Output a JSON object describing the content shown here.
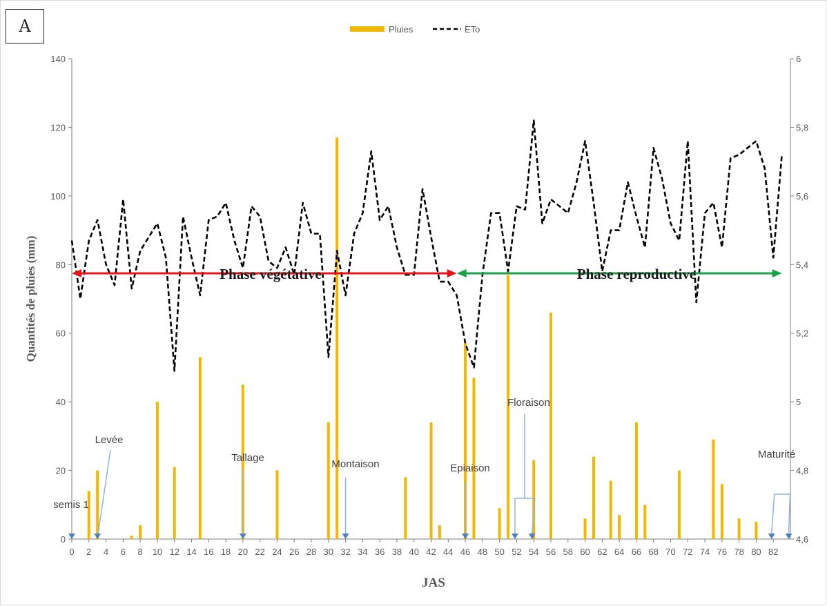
{
  "panel_label": "A",
  "chart_data": {
    "type": "bar",
    "xlabel": "JAS",
    "ylabel": "Quantités de pluies (mm)",
    "x_ticks": [
      0,
      2,
      4,
      6,
      8,
      10,
      12,
      14,
      16,
      18,
      20,
      22,
      24,
      26,
      28,
      30,
      32,
      34,
      36,
      38,
      40,
      42,
      44,
      46,
      48,
      50,
      52,
      54,
      56,
      58,
      60,
      62,
      64,
      66,
      68,
      70,
      72,
      74,
      76,
      78,
      80,
      82
    ],
    "xlim": [
      0,
      84
    ],
    "ylim": [
      0,
      140
    ],
    "y_ticks": [
      0,
      20,
      40,
      60,
      80,
      100,
      120,
      140
    ],
    "y2lim": [
      4.6,
      6.0
    ],
    "y2_ticks": [
      "4,6",
      "4,8",
      "5",
      "5,2",
      "5,4",
      "5,6",
      "5,8",
      "6"
    ],
    "grid": false,
    "legend_position": "top-center",
    "series": [
      {
        "name": "Pluies",
        "type": "bar",
        "axis": "left",
        "color": "#f0b800",
        "points": [
          {
            "x": 2,
            "y": 14
          },
          {
            "x": 3,
            "y": 20
          },
          {
            "x": 7,
            "y": 1
          },
          {
            "x": 8,
            "y": 4
          },
          {
            "x": 10,
            "y": 40
          },
          {
            "x": 12,
            "y": 21
          },
          {
            "x": 15,
            "y": 53
          },
          {
            "x": 20,
            "y": 45
          },
          {
            "x": 24,
            "y": 20
          },
          {
            "x": 30,
            "y": 34
          },
          {
            "x": 31,
            "y": 117
          },
          {
            "x": 39,
            "y": 18
          },
          {
            "x": 42,
            "y": 34
          },
          {
            "x": 43,
            "y": 4
          },
          {
            "x": 46,
            "y": 57
          },
          {
            "x": 47,
            "y": 47
          },
          {
            "x": 50,
            "y": 9
          },
          {
            "x": 51,
            "y": 77
          },
          {
            "x": 54,
            "y": 23
          },
          {
            "x": 56,
            "y": 66
          },
          {
            "x": 60,
            "y": 6
          },
          {
            "x": 61,
            "y": 24
          },
          {
            "x": 63,
            "y": 17
          },
          {
            "x": 64,
            "y": 7
          },
          {
            "x": 66,
            "y": 34
          },
          {
            "x": 67,
            "y": 10
          },
          {
            "x": 71,
            "y": 20
          },
          {
            "x": 75,
            "y": 29
          },
          {
            "x": 76,
            "y": 16
          },
          {
            "x": 78,
            "y": 6
          },
          {
            "x": 80,
            "y": 5
          }
        ]
      },
      {
        "name": "ETo",
        "type": "line",
        "axis": "right",
        "color": "#000000",
        "style": "dashed",
        "x": [
          0,
          1,
          2,
          3,
          4,
          5,
          6,
          7,
          8,
          9,
          10,
          11,
          12,
          13,
          14,
          15,
          16,
          17,
          18,
          19,
          20,
          21,
          22,
          23,
          24,
          25,
          26,
          27,
          28,
          29,
          30,
          31,
          32,
          33,
          34,
          35,
          36,
          37,
          38,
          39,
          40,
          41,
          42,
          43,
          44,
          45,
          46,
          47,
          48,
          49,
          50,
          51,
          52,
          53,
          54,
          55,
          56,
          57,
          58,
          59,
          60,
          61,
          62,
          63,
          64,
          65,
          66,
          67,
          68,
          69,
          70,
          71,
          72,
          73,
          74,
          75,
          76,
          77,
          78,
          80,
          81,
          82,
          83
        ],
        "y": [
          5.47,
          5.3,
          5.47,
          5.53,
          5.4,
          5.34,
          5.59,
          5.33,
          5.44,
          5.48,
          5.52,
          5.42,
          5.09,
          5.54,
          5.42,
          5.31,
          5.53,
          5.54,
          5.58,
          5.47,
          5.39,
          5.57,
          5.54,
          5.41,
          5.39,
          5.45,
          5.37,
          5.58,
          5.49,
          5.49,
          5.13,
          5.44,
          5.31,
          5.49,
          5.55,
          5.73,
          5.53,
          5.57,
          5.45,
          5.37,
          5.37,
          5.62,
          5.48,
          5.35,
          5.35,
          5.31,
          5.17,
          5.1,
          5.37,
          5.55,
          5.55,
          5.38,
          5.57,
          5.56,
          5.82,
          5.52,
          5.59,
          5.57,
          5.55,
          5.64,
          5.76,
          5.58,
          5.38,
          5.5,
          5.5,
          5.64,
          5.54,
          5.45,
          5.74,
          5.65,
          5.52,
          5.47,
          5.76,
          5.29,
          5.55,
          5.58,
          5.45,
          5.71,
          5.72,
          5.76,
          5.68,
          5.42,
          5.72
        ]
      }
    ],
    "phases": [
      {
        "label": "Phase végétative",
        "from": 0,
        "to": 45,
        "color": "#e8141c"
      },
      {
        "label": "Phase reproductive",
        "from": 45,
        "to": 83,
        "color": "#1aa046"
      }
    ],
    "stages": [
      {
        "label": "semis 1",
        "x": 0
      },
      {
        "label": "Levée",
        "x": 3
      },
      {
        "label": "Tallage",
        "x": 20
      },
      {
        "label": "Montaison",
        "x": 32
      },
      {
        "label": "Epiaison",
        "x": 46
      },
      {
        "label": "Floraison",
        "x": 51
      },
      {
        "label": "Maturité",
        "x": 82
      }
    ],
    "stage_arrow_color": "#8db4e2"
  }
}
